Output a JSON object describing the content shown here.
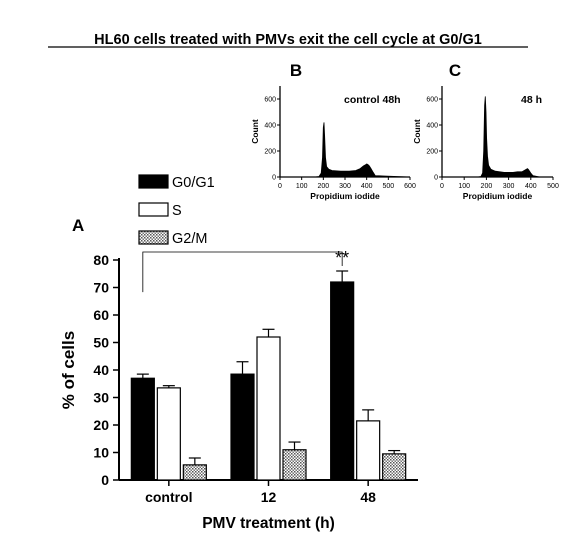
{
  "title": "HL60 cells treated with PMVs exit the cell cycle at G0/G1",
  "chart_data": [
    {
      "type": "bar",
      "panel": "A",
      "categories": [
        "control",
        "12",
        "48"
      ],
      "xlabel": "PMV treatment (h)",
      "ylabel": "% of cells",
      "ylim": [
        0,
        80
      ],
      "yticks": [
        0,
        10,
        20,
        30,
        40,
        50,
        60,
        70,
        80
      ],
      "series": [
        {
          "name": "G0/G1",
          "values": [
            37,
            38.5,
            72
          ],
          "errors": [
            1.5,
            4.5,
            4
          ],
          "fill": "#000000"
        },
        {
          "name": "S",
          "values": [
            33.5,
            52,
            21.5
          ],
          "errors": [
            0.8,
            2.8,
            4
          ],
          "fill": "#ffffff"
        },
        {
          "name": "G2/M",
          "values": [
            5.5,
            11,
            9.5
          ],
          "errors": [
            2.5,
            2.8,
            1.2
          ],
          "fill": "hatch"
        }
      ],
      "significance": {
        "label": "**",
        "from": "control",
        "to": "48",
        "series": "G0/G1"
      },
      "legend_position": "top-left"
    },
    {
      "type": "area",
      "panel": "B",
      "annotation": "control 48h",
      "xlabel": "Propidium iodide",
      "ylabel": "Count",
      "xlim": [
        0,
        600
      ],
      "ylim": [
        0,
        700
      ],
      "xticks": [
        0,
        100,
        200,
        300,
        400,
        500,
        600
      ],
      "yticks": [
        0,
        200,
        400,
        600
      ],
      "x": [
        0,
        160,
        180,
        190,
        196,
        200,
        203,
        206,
        210,
        215,
        225,
        240,
        280,
        320,
        350,
        370,
        385,
        395,
        400,
        405,
        412,
        420,
        430,
        440,
        600
      ],
      "y": [
        0,
        0,
        4,
        30,
        150,
        380,
        420,
        320,
        150,
        80,
        60,
        50,
        45,
        45,
        50,
        65,
        85,
        95,
        100,
        96,
        85,
        65,
        35,
        10,
        0
      ]
    },
    {
      "type": "area",
      "panel": "C",
      "annotation": "48 h",
      "xlabel": "Propidium iodide",
      "ylabel": "Count",
      "xlim": [
        0,
        500
      ],
      "ylim": [
        0,
        700
      ],
      "xticks": [
        0,
        100,
        200,
        300,
        400,
        500
      ],
      "yticks": [
        0,
        200,
        400,
        600
      ],
      "x": [
        0,
        160,
        175,
        183,
        188,
        192,
        195,
        198,
        201,
        205,
        210,
        220,
        240,
        260,
        280,
        300,
        320,
        340,
        360,
        380,
        385,
        390,
        400,
        410,
        440,
        500
      ],
      "y": [
        0,
        0,
        4,
        30,
        200,
        550,
        620,
        500,
        300,
        160,
        90,
        60,
        45,
        40,
        35,
        35,
        35,
        40,
        40,
        60,
        65,
        55,
        30,
        10,
        0,
        0
      ]
    }
  ]
}
